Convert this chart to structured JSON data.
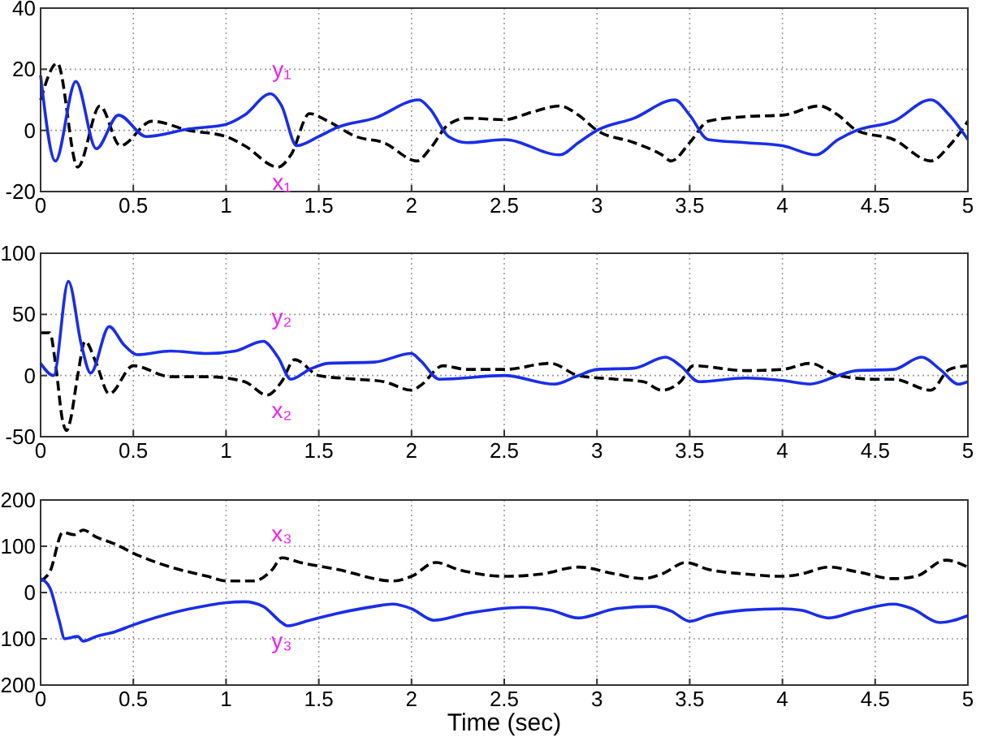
{
  "chart_data": [
    {
      "type": "line",
      "xlim": [
        0,
        5
      ],
      "xticks": [
        0,
        0.5,
        1,
        1.5,
        2,
        2.5,
        3,
        3.5,
        4,
        4.5,
        5
      ],
      "ylim": [
        -20,
        40
      ],
      "yticks": [
        -20,
        0,
        20,
        40
      ],
      "grid": true,
      "series": [
        {
          "name": "x₁",
          "color": "#000000",
          "line_style": "dashed",
          "x": [
            0,
            0.09,
            0.2,
            0.32,
            0.43,
            0.6,
            0.8,
            1.0,
            1.1,
            1.28,
            1.35,
            1.45,
            1.55,
            1.7,
            1.85,
            2.03,
            2.1,
            2.2,
            2.3,
            2.5,
            2.65,
            2.8,
            2.9,
            3.0,
            3.2,
            3.35,
            3.4,
            3.5,
            3.6,
            3.8,
            4.0,
            4.2,
            4.3,
            4.4,
            4.6,
            4.8,
            4.9,
            5.0
          ],
          "values": [
            10,
            22,
            -12,
            8,
            -5,
            3,
            0,
            -2,
            -5,
            -12,
            -8,
            5.5,
            3,
            -2,
            -4,
            -10,
            -6,
            2,
            4,
            3.5,
            6,
            8,
            5,
            0,
            -4,
            -8,
            -10,
            -4,
            3,
            4.5,
            5,
            8,
            5,
            0,
            -3,
            -10,
            -5,
            3
          ]
        },
        {
          "name": "y₁",
          "color": "#1a2ee6",
          "line_style": "solid",
          "x": [
            0,
            0.08,
            0.19,
            0.3,
            0.42,
            0.57,
            0.8,
            1.0,
            1.1,
            1.24,
            1.3,
            1.38,
            1.5,
            1.6,
            1.8,
            2.04,
            2.1,
            2.2,
            2.3,
            2.5,
            2.8,
            2.9,
            3.0,
            3.2,
            3.42,
            3.5,
            3.6,
            3.8,
            4.0,
            4.18,
            4.3,
            4.4,
            4.6,
            4.8,
            4.9,
            5.0
          ],
          "values": [
            18,
            -10,
            16,
            -6,
            5,
            -2,
            0.5,
            2,
            5,
            12,
            8,
            -5,
            -2,
            1,
            4,
            10,
            7,
            -2,
            -4,
            -3,
            -8,
            -4,
            0,
            4,
            10,
            5,
            -3,
            -4,
            -5,
            -8,
            -3,
            0,
            3,
            10,
            5,
            -3
          ]
        }
      ]
    },
    {
      "type": "line",
      "xlim": [
        0,
        5
      ],
      "xticks": [
        0,
        0.5,
        1,
        1.5,
        2,
        2.5,
        3,
        3.5,
        4,
        4.5,
        5
      ],
      "ylim": [
        -50,
        100
      ],
      "yticks": [
        -50,
        0,
        50,
        100
      ],
      "grid": true,
      "series": [
        {
          "name": "x₂",
          "color": "#000000",
          "line_style": "dashed",
          "x": [
            0,
            0.05,
            0.08,
            0.12,
            0.14,
            0.16,
            0.2,
            0.24,
            0.3,
            0.37,
            0.5,
            0.7,
            0.9,
            1.1,
            1.22,
            1.3,
            1.37,
            1.5,
            1.7,
            1.85,
            2.0,
            2.05,
            2.17,
            2.3,
            2.5,
            2.75,
            2.9,
            3.1,
            3.25,
            3.35,
            3.45,
            3.52,
            3.8,
            4.0,
            4.15,
            4.3,
            4.5,
            4.6,
            4.8,
            4.9,
            5.0
          ],
          "values": [
            35,
            35,
            10,
            -38,
            -45,
            -37,
            0,
            28,
            10,
            -15,
            8,
            -1,
            -1,
            -5,
            -16,
            -5,
            13,
            0,
            -3,
            -5,
            -12,
            -8,
            8,
            5,
            5,
            10,
            0,
            -3,
            -5,
            -12,
            -5,
            8,
            4,
            5,
            10,
            0,
            -3,
            -3,
            -12,
            5,
            8
          ]
        },
        {
          "name": "y₂",
          "color": "#1a2ee6",
          "line_style": "solid",
          "x": [
            0,
            0.07,
            0.15,
            0.22,
            0.27,
            0.37,
            0.45,
            0.52,
            0.7,
            0.9,
            1.05,
            1.2,
            1.28,
            1.35,
            1.45,
            1.55,
            1.8,
            2.0,
            2.05,
            2.15,
            2.5,
            2.77,
            2.9,
            3.0,
            3.2,
            3.37,
            3.45,
            3.55,
            3.8,
            4.0,
            4.15,
            4.3,
            4.4,
            4.6,
            4.75,
            4.85,
            4.95,
            5.0
          ],
          "values": [
            10,
            0,
            77,
            25,
            2,
            40,
            25,
            17,
            20,
            18,
            20,
            28,
            15,
            -3,
            5,
            10,
            11,
            18,
            12,
            -3,
            0,
            -7,
            0,
            5,
            6,
            15,
            8,
            -5,
            -2,
            -4,
            -7,
            0,
            4,
            5,
            15,
            5,
            -7,
            -5
          ]
        }
      ]
    },
    {
      "type": "line",
      "xlim": [
        0,
        5
      ],
      "xticks": [
        0,
        0.5,
        1,
        1.5,
        2,
        2.5,
        3,
        3.5,
        4,
        4.5,
        5
      ],
      "ylim": [
        -200,
        200
      ],
      "yticks": [
        {
          "value": -200,
          "label": "200"
        },
        {
          "value": -100,
          "label": "100"
        },
        0,
        100,
        200
      ],
      "grid": true,
      "xlabel": "Time (sec)",
      "series": [
        {
          "name": "x₃",
          "color": "#000000",
          "line_style": "dashed",
          "x": [
            0,
            0.05,
            0.12,
            0.18,
            0.23,
            0.3,
            0.4,
            0.5,
            0.7,
            0.9,
            1.0,
            1.15,
            1.25,
            1.3,
            1.4,
            1.6,
            1.9,
            2.0,
            2.13,
            2.25,
            2.5,
            2.7,
            2.9,
            3.1,
            3.25,
            3.35,
            3.48,
            3.6,
            3.8,
            4.0,
            4.1,
            4.25,
            4.4,
            4.6,
            4.72,
            4.88,
            5.0
          ],
          "values": [
            25,
            45,
            130,
            125,
            135,
            120,
            105,
            85,
            55,
            35,
            25,
            25,
            50,
            75,
            65,
            50,
            25,
            35,
            65,
            50,
            35,
            40,
            55,
            40,
            30,
            40,
            65,
            50,
            40,
            35,
            40,
            55,
            45,
            30,
            35,
            70,
            55
          ]
        },
        {
          "name": "y₃",
          "color": "#1a2ee6",
          "line_style": "solid",
          "x": [
            0,
            0.05,
            0.1,
            0.13,
            0.2,
            0.23,
            0.3,
            0.4,
            0.5,
            0.7,
            0.9,
            1.0,
            1.1,
            1.2,
            1.3,
            1.33,
            1.45,
            1.6,
            1.8,
            1.9,
            2.0,
            2.12,
            2.3,
            2.6,
            2.75,
            2.9,
            3.1,
            3.3,
            3.4,
            3.5,
            3.6,
            3.8,
            4.0,
            4.1,
            4.25,
            4.4,
            4.6,
            4.7,
            4.85,
            5.0
          ],
          "values": [
            30,
            10,
            -60,
            -100,
            -95,
            -105,
            -95,
            -85,
            -70,
            -45,
            -28,
            -22,
            -20,
            -30,
            -65,
            -72,
            -60,
            -45,
            -30,
            -25,
            -35,
            -60,
            -45,
            -32,
            -38,
            -55,
            -35,
            -30,
            -40,
            -62,
            -50,
            -38,
            -35,
            -38,
            -55,
            -40,
            -25,
            -35,
            -65,
            -50
          ]
        }
      ]
    }
  ]
}
